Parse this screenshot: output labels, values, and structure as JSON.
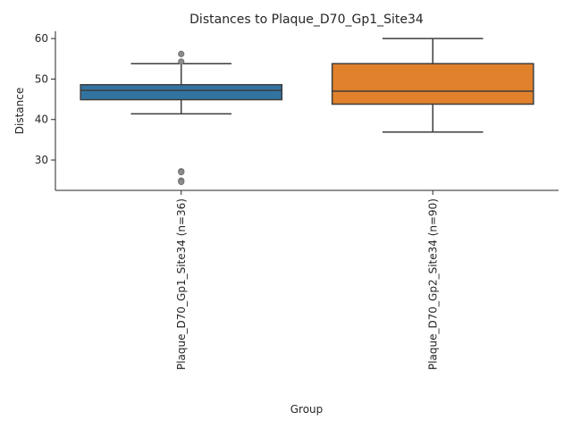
{
  "chart_data": {
    "type": "box",
    "title": "Distances to Plaque_D70_Gp1_Site34",
    "xlabel": "Group",
    "ylabel": "Distance",
    "ylim": [
      22.5,
      61.8
    ],
    "yticks": [
      30,
      40,
      50,
      60
    ],
    "grid": false,
    "categories": [
      "Plaque_D70_Gp1_Site34 (n=36)",
      "Plaque_D70_Gp2_Site34 (n=90)"
    ],
    "boxes": [
      {
        "category": "Plaque_D70_Gp1_Site34 (n=36)",
        "color": "#3274a1",
        "whisker_low": 41.4,
        "q1": 44.9,
        "median": 47.2,
        "q3": 48.6,
        "whisker_high": 53.8,
        "outliers": [
          56.2,
          54.3,
          27.2,
          27.0,
          24.9,
          24.6
        ]
      },
      {
        "category": "Plaque_D70_Gp2_Site34 (n=90)",
        "color": "#e1812c",
        "whisker_low": 36.9,
        "q1": 43.8,
        "median": 47.0,
        "q3": 53.8,
        "whisker_high": 60.0,
        "outliers": []
      }
    ]
  }
}
